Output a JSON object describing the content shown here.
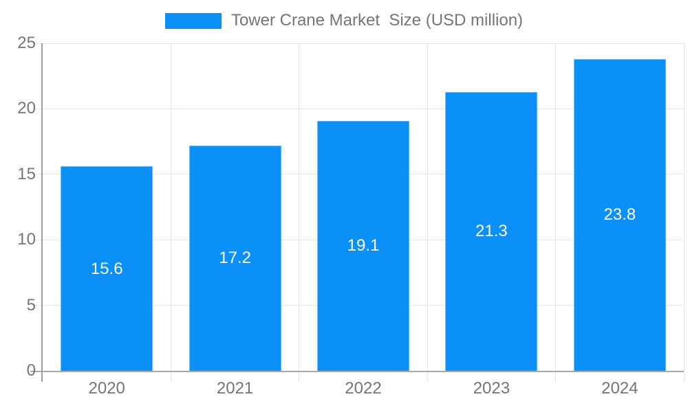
{
  "legend": {
    "label": "Tower Crane Market  Size (USD million)"
  },
  "chart_data": {
    "type": "bar",
    "title": "Tower Crane Market  Size (USD million)",
    "categories": [
      "2020",
      "2021",
      "2022",
      "2023",
      "2024"
    ],
    "series": [
      {
        "name": "Tower Crane Market  Size (USD million)",
        "values": [
          15.6,
          17.2,
          19.1,
          21.3,
          23.8
        ]
      }
    ],
    "value_labels": [
      "15.6",
      "17.2",
      "19.1",
      "21.3",
      "23.8"
    ],
    "xlabel": "",
    "ylabel": "",
    "ylim": [
      0,
      25
    ],
    "y_ticks": [
      0,
      5,
      10,
      15,
      20,
      25
    ],
    "grid": true,
    "legend_position": "top-center",
    "colors": {
      "bar": "#0a90f6",
      "grid": "#e4e4e4",
      "axis_y": "#9c9c9c",
      "axis_x": "#a8a8a8",
      "tick_label": "#757575",
      "value_label": "#ffffff",
      "background": "#ffffff"
    }
  }
}
